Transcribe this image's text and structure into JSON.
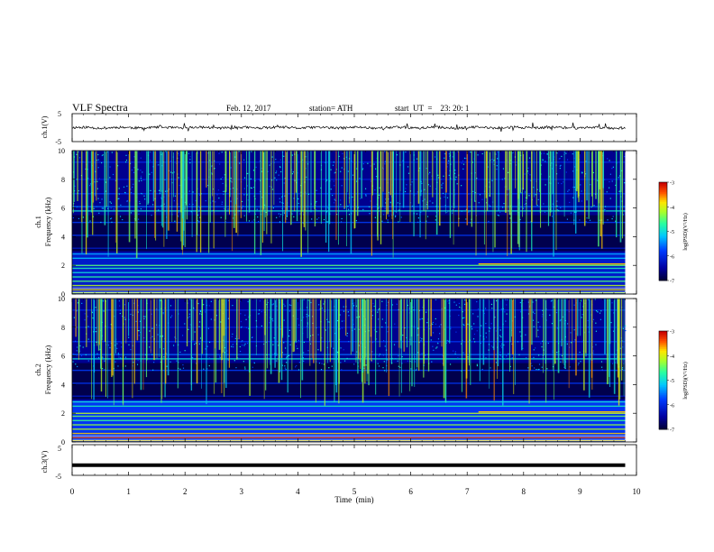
{
  "header": {
    "title": "VLF  Spectra",
    "date": "Feb. 12, 2017",
    "station": "station= ATH",
    "start": "start  UT  =    23: 20: 1"
  },
  "chart_data": [
    {
      "type": "line",
      "id": "ch1",
      "ylabel": "ch.1(V)",
      "ylim": [
        -5,
        5
      ],
      "yticks": [
        "5",
        "-5"
      ],
      "xlim": [
        0,
        10
      ],
      "series": [
        {
          "color": "#000000",
          "values": []
        }
      ]
    },
    {
      "type": "heatmap",
      "id": "ch1-spectrogram",
      "ylabel_top": "ch.1",
      "ylabel": "Frequency  (kHz)",
      "ylim": [
        0,
        10
      ],
      "yticks": [
        "0",
        "2",
        "4",
        "6",
        "8",
        "10"
      ],
      "xlim": [
        0,
        10
      ],
      "data_end_min": 9.8,
      "colorbar": {
        "label": "log(PSD)(V²/Hz)",
        "ticks": [
          "-3",
          "-4",
          "-5",
          "-6",
          "-7"
        ],
        "range": [
          -7,
          -3
        ]
      }
    },
    {
      "type": "heatmap",
      "id": "ch2-spectrogram",
      "ylabel_top": "ch.2",
      "ylabel": "Frequency  (kHz)",
      "ylim": [
        0,
        10
      ],
      "yticks": [
        "0",
        "2",
        "4",
        "6",
        "8",
        "10"
      ],
      "xlim": [
        0,
        10
      ],
      "data_end_min": 9.8,
      "colorbar": {
        "label": "log(PSD)(V²/Hz)",
        "ticks": [
          "-3",
          "-4",
          "-5",
          "-6",
          "-7"
        ],
        "range": [
          -7,
          -3
        ]
      }
    },
    {
      "type": "line",
      "id": "ch3",
      "ylabel": "ch.3(V)",
      "ylim": [
        -5,
        5
      ],
      "yticks": [
        "5",
        "-5"
      ],
      "xlim": [
        0,
        10
      ],
      "series": [
        {
          "color": "#000000",
          "values": [
            -1.9,
            -1.9
          ]
        }
      ]
    }
  ],
  "xaxis": {
    "label": "Time  (min)",
    "ticks": [
      "0",
      "1",
      "2",
      "3",
      "4",
      "5",
      "6",
      "7",
      "8",
      "9",
      "10"
    ]
  }
}
